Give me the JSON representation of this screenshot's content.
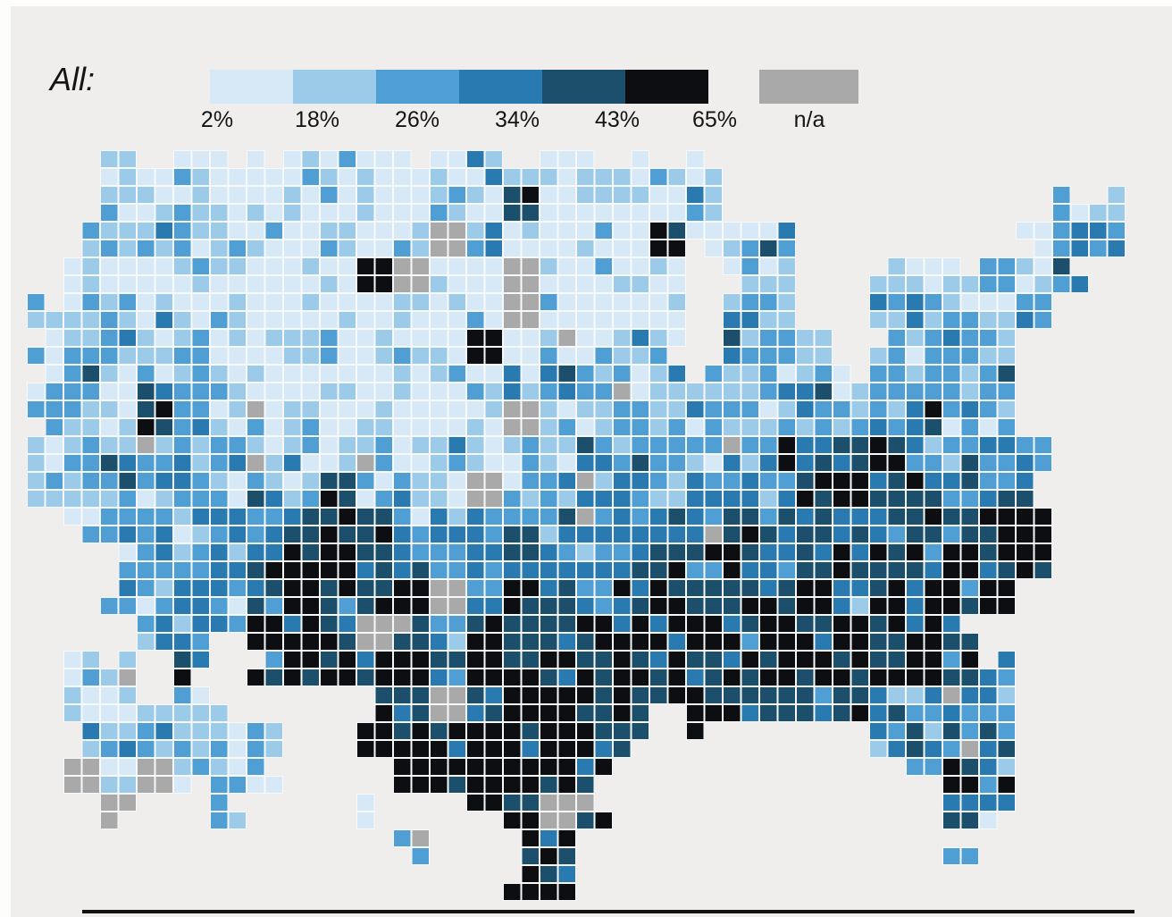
{
  "page": {
    "background_color": "#efeeec"
  },
  "legend": {
    "title": "All:",
    "items": [
      {
        "label": "2%",
        "color": "#d7e9f7"
      },
      {
        "label": "18%",
        "color": "#9ccbea"
      },
      {
        "label": "26%",
        "color": "#4f9fd5"
      },
      {
        "label": "34%",
        "color": "#2a7ab2"
      },
      {
        "label": "43%",
        "color": "#1b4f6c"
      },
      {
        "label": "65%",
        "color": "#0c0e11"
      }
    ],
    "na": {
      "label": "n/a",
      "color": "#a9a9a9"
    }
  },
  "chart_data": {
    "type": "choropleth",
    "region": "United States, county level (incl. Alaska and Hawaii insets)",
    "legend_title": "All:",
    "class_labels": [
      "2%",
      "18%",
      "26%",
      "34%",
      "43%",
      "65%"
    ],
    "class_breaks_percent": [
      2,
      18,
      26,
      34,
      43,
      65
    ],
    "na_label": "n/a",
    "palette": [
      "#d7e9f7",
      "#9ccbea",
      "#4f9fd5",
      "#2a7ab2",
      "#1b4f6c",
      "#0c0e11"
    ],
    "na_color": "#a9a9a9",
    "grid_encoding": {
      ".": "no land",
      "0": "lightest class",
      "5": "darkest class",
      "g": "n/a (gray)"
    },
    "grid": [
      "..10100100001000010...........",
      "..21001000010400101.........21",
      ".1121000100g200004012......122",
      ".100100005g00g0010.11..111214.",
      "1211010000100g0001.21..12112..",
      "122121010000501011.221.2121...",
      "121211101000012112112212212...",
      "2114211101000g1121221222322...",
      "1222121112010112222233453232..",
      "112121214111g222323334554333..",
      ".122232455232223333434434355..",
      "..23234554323332344533444545..",
      "..223245455g354345454535545...",
      "...323555g4355455454545453....",
      ".01.3.455554555455455545543...",
      ".12111...55g455454544343232...",
      ".212111..55554554.4....2323...",
      ".g1g121...555554........253...",
      "..g..2...1..55g5.........32...",
      "..........2..55..........2....",
      ".............55..............."
    ]
  }
}
